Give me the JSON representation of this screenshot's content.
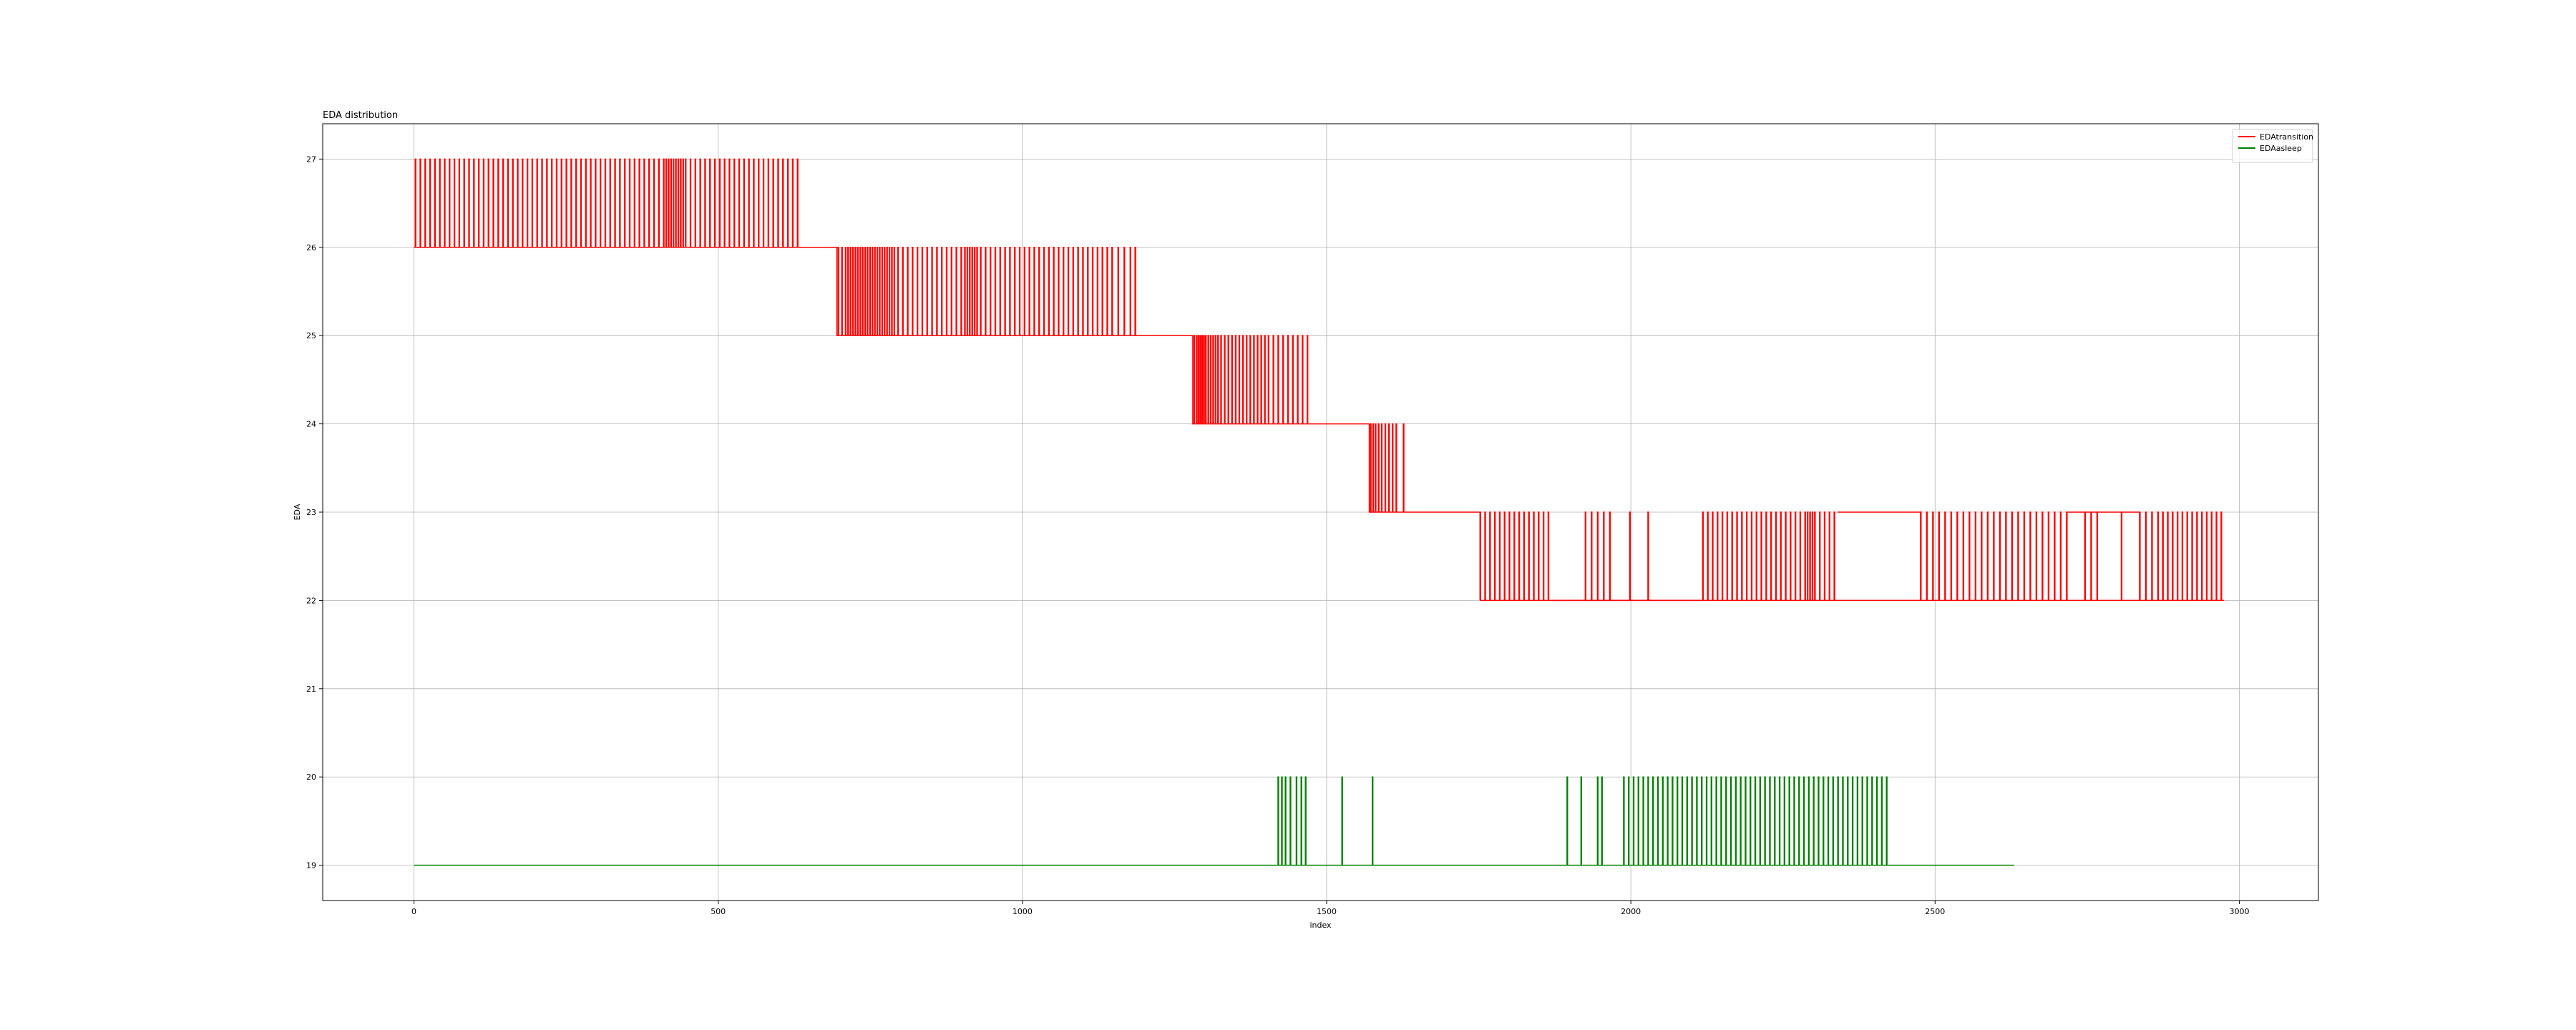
{
  "chart_data": {
    "type": "line",
    "title": "EDA distribution",
    "xlabel": "index",
    "ylabel": "EDA",
    "xlim": [
      -150,
      3130
    ],
    "ylim": [
      18.6,
      27.4
    ],
    "xticks": [
      0,
      500,
      1000,
      1500,
      2000,
      2500,
      3000
    ],
    "yticks": [
      19,
      20,
      21,
      22,
      23,
      24,
      25,
      26,
      27
    ],
    "grid": true,
    "legend_position": "top-right",
    "series": [
      {
        "name": "EDAtransition",
        "color": "#ff0000",
        "x_end": 2975,
        "segments": [
          {
            "from": 0,
            "to": 635,
            "base": 26,
            "alt": 27,
            "pulse_starts": [
              2,
              10,
              18,
              26,
              34,
              42,
              50,
              58,
              66,
              74,
              82,
              90,
              98,
              106,
              114,
              122,
              130,
              138,
              146,
              154,
              162,
              170,
              178,
              186,
              194,
              202,
              210,
              218,
              226,
              234,
              242,
              250,
              258,
              266,
              274,
              282,
              290,
              298,
              306,
              314,
              322,
              330,
              338,
              346,
              354,
              362,
              370,
              378,
              386,
              394,
              402,
              410,
              414,
              418,
              422,
              426,
              430,
              434,
              438,
              442,
              446,
              454,
              462,
              470,
              478,
              486,
              494,
              502,
              510,
              518,
              526,
              534,
              542,
              550,
              558,
              566,
              574,
              582,
              590,
              598,
              606,
              614,
              622,
              630
            ]
          },
          {
            "from": 635,
            "to": 695,
            "base": 26,
            "alt": 26,
            "pulse_starts": []
          },
          {
            "from": 695,
            "to": 1190,
            "base": 25,
            "alt": 26,
            "pulse_starts": [
              697,
              703,
              709,
              713,
              717,
              721,
              725,
              729,
              733,
              737,
              741,
              745,
              749,
              753,
              757,
              761,
              765,
              769,
              773,
              777,
              781,
              785,
              789,
              795,
              803,
              811,
              819,
              827,
              835,
              843,
              851,
              859,
              867,
              875,
              883,
              891,
              899,
              905,
              909,
              913,
              917,
              921,
              925,
              931,
              939,
              947,
              955,
              963,
              971,
              979,
              987,
              995,
              1003,
              1011,
              1019,
              1027,
              1035,
              1043,
              1051,
              1059,
              1067,
              1075,
              1083,
              1091,
              1099,
              1107,
              1115,
              1123,
              1131,
              1139,
              1147,
              1157,
              1167,
              1177,
              1185
            ]
          },
          {
            "from": 1190,
            "to": 1280,
            "base": 25,
            "alt": 25,
            "pulse_starts": []
          },
          {
            "from": 1280,
            "to": 1475,
            "base": 24,
            "alt": 25,
            "pulse_starts": [
              1282,
              1286,
              1289,
              1292,
              1295,
              1298,
              1301,
              1305,
              1309,
              1313,
              1317,
              1321,
              1326,
              1332,
              1338,
              1344,
              1350,
              1356,
              1362,
              1368,
              1374,
              1380,
              1386,
              1392,
              1398,
              1404,
              1412,
              1420,
              1428,
              1436,
              1444,
              1452,
              1460,
              1468
            ]
          },
          {
            "from": 1475,
            "to": 1570,
            "base": 24,
            "alt": 24,
            "pulse_starts": []
          },
          {
            "from": 1570,
            "to": 1632,
            "base": 23,
            "alt": 24,
            "pulse_starts": [
              1572,
              1576,
              1580,
              1585,
              1590,
              1596,
              1602,
              1608,
              1614,
              1626
            ]
          },
          {
            "from": 1632,
            "to": 1752,
            "base": 23,
            "alt": 23,
            "pulse_starts": []
          },
          {
            "from": 1752,
            "to": 2975,
            "base": 22,
            "alt": 23,
            "pulse_starts": [
              1752,
              1760,
              1768,
              1776,
              1784,
              1792,
              1800,
              1808,
              1816,
              1824,
              1832,
              1840,
              1848,
              1856,
              1864,
              1925,
              1935,
              1945,
              1955,
              1965,
              1998,
              2028,
              2118,
              2126,
              2134,
              2142,
              2150,
              2158,
              2166,
              2174,
              2182,
              2190,
              2198,
              2206,
              2214,
              2222,
              2230,
              2238,
              2246,
              2254,
              2262,
              2270,
              2278,
              2286,
              2290,
              2294,
              2298,
              2302,
              2310,
              2318,
              2326,
              2334,
              2476,
              2486,
              2496,
              2506,
              2516,
              2526,
              2536,
              2546,
              2556,
              2566,
              2576,
              2586,
              2596,
              2606,
              2616,
              2626,
              2636,
              2646,
              2656,
              2666,
              2676,
              2686,
              2696,
              2706,
              2716,
              2746,
              2756,
              2766,
              2806,
              2836,
              2846,
              2856,
              2866,
              2874,
              2882,
              2890,
              2898,
              2906,
              2914,
              2922,
              2930,
              2938,
              2946,
              2954,
              2962,
              2970
            ]
          }
        ],
        "overlays": [
          {
            "from": 1870,
            "to": 2115,
            "level": 22
          },
          {
            "from": 2340,
            "to": 2478,
            "level": 23
          },
          {
            "from": 2716,
            "to": 2836,
            "level": 23
          }
        ]
      },
      {
        "name": "EDAasleep",
        "color": "#008000",
        "x_end": 2630,
        "segments": [
          {
            "from": 0,
            "to": 2630,
            "base": 19,
            "alt": 20,
            "pulse_starts": [
              1420,
              1426,
              1432,
              1440,
              1450,
              1458,
              1465,
              1525,
              1575,
              1895,
              1918,
              1945,
              1952,
              1988,
              1996,
              2004,
              2012,
              2020,
              2028,
              2036,
              2044,
              2052,
              2060,
              2068,
              2076,
              2084,
              2092,
              2100,
              2108,
              2116,
              2124,
              2132,
              2140,
              2148,
              2156,
              2164,
              2172,
              2180,
              2188,
              2196,
              2204,
              2212,
              2220,
              2228,
              2236,
              2244,
              2252,
              2260,
              2268,
              2276,
              2284,
              2292,
              2300,
              2308,
              2316,
              2324,
              2332,
              2340,
              2348,
              2356,
              2364,
              2372,
              2380,
              2388,
              2396,
              2404,
              2412,
              2420
            ]
          }
        ]
      }
    ]
  }
}
